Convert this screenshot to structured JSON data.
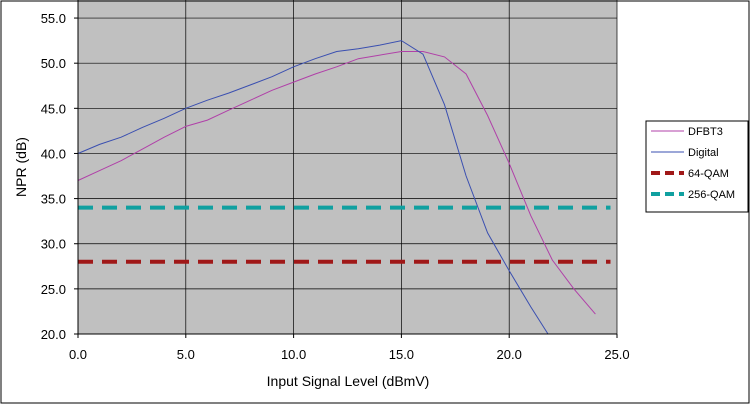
{
  "chart_data": {
    "type": "line",
    "xlabel": "Input Signal Level (dBmV)",
    "ylabel": "NPR (dB)",
    "xlim": [
      0,
      25
    ],
    "ylim": [
      20,
      57
    ],
    "xticks": [
      "0.0",
      "5.0",
      "10.0",
      "15.0",
      "20.0",
      "25.0"
    ],
    "yticks": [
      "20.0",
      "25.0",
      "30.0",
      "35.0",
      "40.0",
      "45.0",
      "50.0",
      "55.0"
    ],
    "grid": true,
    "legend_position": "right",
    "series": [
      {
        "name": "DFBT3",
        "color": "#b040a8",
        "style": "solid",
        "x": [
          0,
          1,
          2,
          3,
          4,
          5,
          6,
          7,
          8,
          9,
          10,
          11,
          12,
          13,
          14,
          15,
          16,
          17,
          18,
          19,
          20,
          21,
          22,
          23,
          24
        ],
        "y": [
          37.0,
          38.1,
          39.2,
          40.5,
          41.8,
          43.0,
          43.7,
          44.8,
          45.9,
          47.0,
          47.9,
          48.8,
          49.6,
          50.5,
          50.9,
          51.3,
          51.3,
          50.7,
          48.8,
          44.2,
          38.9,
          33.1,
          28.2,
          25.0,
          22.2
        ]
      },
      {
        "name": "Digital",
        "color": "#3a4fb0",
        "style": "solid",
        "x": [
          0,
          1,
          2,
          3,
          4,
          5,
          6,
          7,
          8,
          9,
          10,
          11,
          12,
          13,
          14,
          15,
          16,
          17,
          18,
          19,
          20,
          21,
          21.8
        ],
        "y": [
          40.0,
          41.0,
          41.8,
          42.9,
          43.9,
          45.0,
          45.9,
          46.7,
          47.6,
          48.5,
          49.6,
          50.5,
          51.3,
          51.6,
          52.0,
          52.5,
          51.0,
          45.4,
          37.5,
          31.2,
          27.0,
          23.0,
          20.0
        ]
      },
      {
        "name": "64-QAM",
        "color": "#a01818",
        "style": "dashed",
        "x": [
          0,
          24.7
        ],
        "y": [
          28,
          28
        ]
      },
      {
        "name": "256-QAM",
        "color": "#10a0a0",
        "style": "dashed",
        "x": [
          0,
          24.7
        ],
        "y": [
          34,
          34
        ]
      }
    ]
  }
}
